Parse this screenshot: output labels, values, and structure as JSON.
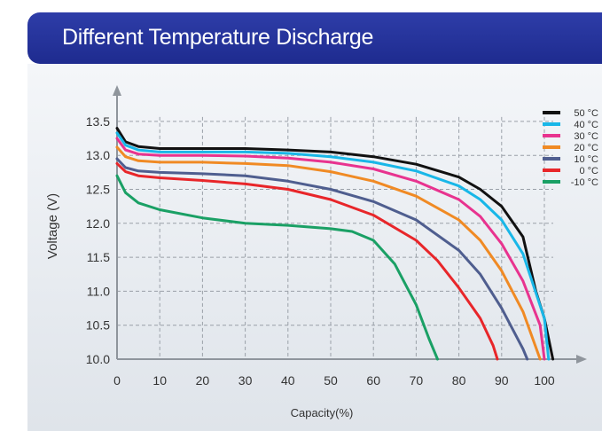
{
  "header": {
    "title": "Different Temperature Discharge"
  },
  "chart_data": {
    "type": "line",
    "title": "Different Temperature Discharge",
    "xlabel": "Capacity(%)",
    "ylabel": "Voltage (V)",
    "xlim": [
      0,
      110
    ],
    "ylim": [
      10.0,
      13.5
    ],
    "x_ticks": [
      "0",
      "10",
      "20",
      "30",
      "40",
      "50",
      "60",
      "70",
      "80",
      "90",
      "100"
    ],
    "y_ticks": [
      "10.0",
      "10.5",
      "11.0",
      "11.5",
      "12.0",
      "12.5",
      "13.0",
      "13.5"
    ],
    "grid": true,
    "legend_position": "top-right",
    "series": [
      {
        "name": "50 °C",
        "color": "#111111",
        "x": [
          0,
          2,
          5,
          10,
          20,
          30,
          40,
          50,
          60,
          70,
          80,
          85,
          90,
          95,
          98,
          100,
          102
        ],
        "y": [
          13.4,
          13.2,
          13.13,
          13.1,
          13.1,
          13.1,
          13.08,
          13.05,
          12.98,
          12.87,
          12.68,
          12.5,
          12.25,
          11.8,
          11.0,
          10.6,
          10.0
        ]
      },
      {
        "name": "40 °C",
        "color": "#19b7e8",
        "x": [
          0,
          2,
          5,
          10,
          20,
          30,
          40,
          50,
          60,
          70,
          80,
          85,
          90,
          95,
          100,
          101
        ],
        "y": [
          13.33,
          13.15,
          13.08,
          13.05,
          13.05,
          13.05,
          13.03,
          12.98,
          12.9,
          12.77,
          12.55,
          12.35,
          12.05,
          11.55,
          10.6,
          10.0
        ]
      },
      {
        "name": "30 °C",
        "color": "#e8338f",
        "x": [
          0,
          2,
          5,
          10,
          20,
          30,
          40,
          50,
          60,
          70,
          80,
          85,
          90,
          95,
          99,
          100
        ],
        "y": [
          13.25,
          13.08,
          13.02,
          13.0,
          13.0,
          12.99,
          12.96,
          12.9,
          12.8,
          12.62,
          12.35,
          12.1,
          11.7,
          11.15,
          10.5,
          10.0
        ]
      },
      {
        "name": "20 °C",
        "color": "#f08a24",
        "x": [
          0,
          2,
          5,
          10,
          20,
          30,
          40,
          50,
          60,
          70,
          80,
          85,
          90,
          95,
          99
        ],
        "y": [
          13.12,
          12.98,
          12.92,
          12.9,
          12.9,
          12.88,
          12.85,
          12.76,
          12.62,
          12.4,
          12.05,
          11.75,
          11.3,
          10.7,
          10.0
        ]
      },
      {
        "name": "10 °C",
        "color": "#4f5e8f",
        "x": [
          0,
          2,
          5,
          10,
          20,
          30,
          40,
          50,
          60,
          70,
          80,
          85,
          90,
          95,
          96
        ],
        "y": [
          12.95,
          12.82,
          12.77,
          12.75,
          12.73,
          12.7,
          12.62,
          12.5,
          12.32,
          12.05,
          11.6,
          11.25,
          10.75,
          10.15,
          10.0
        ]
      },
      {
        "name": "0 °C",
        "color": "#e8262a",
        "x": [
          0,
          2,
          5,
          10,
          20,
          30,
          40,
          50,
          60,
          70,
          75,
          80,
          85,
          88,
          89
        ],
        "y": [
          12.88,
          12.76,
          12.7,
          12.67,
          12.63,
          12.58,
          12.5,
          12.35,
          12.12,
          11.75,
          11.45,
          11.05,
          10.6,
          10.2,
          10.0
        ]
      },
      {
        "name": "-10 °C",
        "color": "#1aa065",
        "x": [
          0,
          2,
          5,
          10,
          20,
          30,
          40,
          50,
          55,
          60,
          65,
          70,
          73,
          75
        ],
        "y": [
          12.7,
          12.45,
          12.3,
          12.2,
          12.08,
          12.0,
          11.97,
          11.92,
          11.88,
          11.75,
          11.4,
          10.8,
          10.3,
          10.0
        ]
      }
    ]
  }
}
